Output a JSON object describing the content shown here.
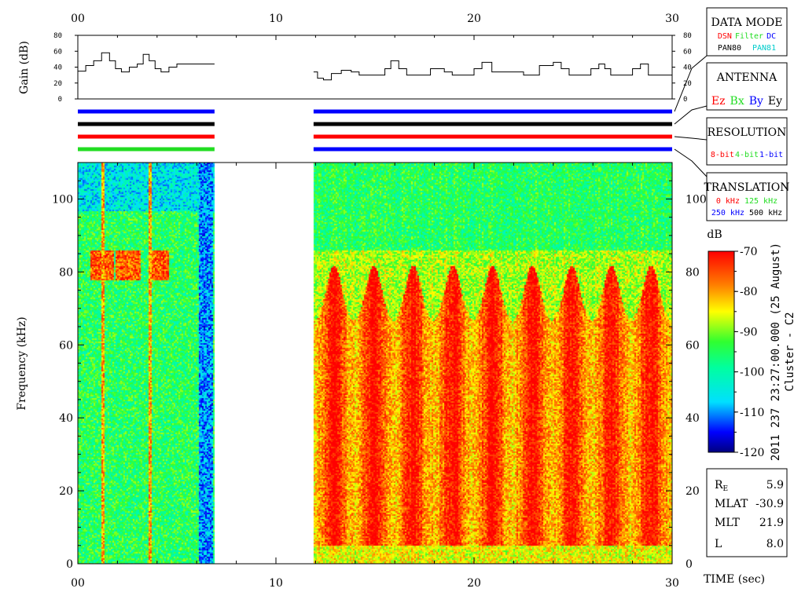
{
  "colors": {
    "red": "#ff0000",
    "green": "#22dd22",
    "blue": "#0000ff",
    "cyan": "#00cccc",
    "black": "#000000"
  },
  "time_axis": {
    "label": "TIME (sec)",
    "ticks": [
      "00",
      "10",
      "20",
      "30"
    ],
    "tick_values": [
      0,
      10,
      20,
      30
    ],
    "range": [
      0,
      30
    ],
    "minor_step": 2
  },
  "gain_panel": {
    "ylabel": "Gain (dB)",
    "ticks": [
      "0",
      "20",
      "40",
      "60",
      "80"
    ],
    "tick_values": [
      0,
      20,
      40,
      60,
      80
    ],
    "range": [
      0,
      80
    ]
  },
  "side_boxes": {
    "data_mode": {
      "title": "DATA MODE",
      "row1": [
        {
          "text": "DSN",
          "color": "red"
        },
        {
          "text": "Filter",
          "color": "green"
        },
        {
          "text": "DC",
          "color": "blue"
        }
      ],
      "row2": [
        {
          "text": "PAN80",
          "color": "black"
        },
        {
          "text": "PAN81",
          "color": "cyan"
        }
      ]
    },
    "antenna": {
      "title": "ANTENNA",
      "items": [
        {
          "text": "Ez",
          "color": "red"
        },
        {
          "text": "Bx",
          "color": "green"
        },
        {
          "text": "By",
          "color": "blue"
        },
        {
          "text": "Ey",
          "color": "black"
        }
      ]
    },
    "resolution": {
      "title": "RESOLUTION",
      "items": [
        {
          "text": "8-bit",
          "color": "red"
        },
        {
          "text": "4-bit",
          "color": "green"
        },
        {
          "text": "1-bit",
          "color": "blue"
        }
      ]
    },
    "translation": {
      "title": "TRANSLATION",
      "row1": [
        {
          "text": "0 kHz",
          "color": "red"
        },
        {
          "text": "125 kHz",
          "color": "green"
        }
      ],
      "row2": [
        {
          "text": "250 kHz",
          "color": "blue"
        },
        {
          "text": "500 kHz",
          "color": "black"
        }
      ]
    }
  },
  "mode_bars": [
    {
      "indicator": "data_mode",
      "segments": [
        {
          "start": 0,
          "end": 6.9,
          "color": "blue"
        },
        {
          "start": 11.9,
          "end": 30,
          "color": "blue"
        }
      ]
    },
    {
      "indicator": "antenna",
      "segments": [
        {
          "start": 0,
          "end": 6.9,
          "color": "black"
        },
        {
          "start": 11.9,
          "end": 30,
          "color": "black"
        }
      ]
    },
    {
      "indicator": "resolution",
      "segments": [
        {
          "start": 0,
          "end": 6.9,
          "color": "red"
        },
        {
          "start": 11.9,
          "end": 30,
          "color": "red"
        }
      ]
    },
    {
      "indicator": "translation",
      "segments": [
        {
          "start": 0,
          "end": 6.9,
          "color": "green"
        },
        {
          "start": 11.9,
          "end": 30,
          "color": "blue"
        }
      ]
    }
  ],
  "colorbar": {
    "unit": "dB",
    "ticks": [
      "-70",
      "-80",
      "-90",
      "-100",
      "-110",
      "-120"
    ],
    "tick_values": [
      -70,
      -80,
      -90,
      -100,
      -110,
      -120
    ],
    "range": [
      -120,
      -70
    ]
  },
  "caption": {
    "timestamp": "2011 237 23:27:00.000 (25 August)",
    "spacecraft": "Cluster - C2"
  },
  "orbit_info": [
    {
      "label": "RE",
      "label_main": "R",
      "label_sub": "E",
      "value": "5.9"
    },
    {
      "label": "MLAT",
      "value": "-30.9"
    },
    {
      "label": "MLT",
      "value": "21.9"
    },
    {
      "label": "L",
      "value": "8.0"
    }
  ],
  "chart_data": [
    {
      "type": "line",
      "name": "gain",
      "xlabel": "",
      "ylabel": "Gain (dB)",
      "xlim": [
        0,
        30
      ],
      "ylim": [
        0,
        80
      ],
      "series": [
        {
          "x": [
            0,
            0.4,
            0.8,
            1.2,
            1.6,
            1.9,
            2.2,
            2.6,
            3.0,
            3.3,
            3.6,
            3.9,
            4.2,
            4.6,
            5.0,
            5.5,
            6.0,
            6.9
          ],
          "y": [
            35,
            42,
            48,
            58,
            48,
            38,
            34,
            40,
            44,
            56,
            48,
            38,
            34,
            40,
            44,
            44,
            44,
            44
          ]
        },
        {
          "x": [
            11.9,
            12.1,
            12.4,
            12.8,
            13.3,
            13.8,
            14.2,
            15.0,
            15.5,
            15.8,
            16.2,
            16.6,
            17.4,
            17.8,
            18.1,
            18.5,
            18.9,
            19.6,
            20.0,
            20.4,
            20.9,
            22.0,
            22.5,
            22.9,
            23.3,
            24.0,
            24.4,
            24.8,
            25.3,
            25.9,
            26.3,
            26.6,
            26.9,
            27.5,
            28.0,
            28.4,
            28.8,
            30.0
          ],
          "y": [
            34,
            26,
            24,
            32,
            36,
            34,
            30,
            30,
            38,
            48,
            38,
            30,
            30,
            38,
            38,
            34,
            30,
            30,
            38,
            46,
            34,
            34,
            30,
            30,
            42,
            46,
            38,
            30,
            30,
            38,
            44,
            38,
            30,
            30,
            38,
            44,
            30,
            30
          ]
        }
      ]
    },
    {
      "type": "heatmap",
      "name": "spectrogram",
      "xlabel": "TIME (sec)",
      "ylabel": "Frequency (kHz)",
      "xlim": [
        0,
        30
      ],
      "ylim": [
        0,
        110
      ],
      "yticks": [
        0,
        20,
        40,
        60,
        80,
        100
      ],
      "colorbar_range_db": [
        -120,
        -70
      ],
      "data_gaps": [
        [
          6.9,
          11.9
        ]
      ],
      "segments": [
        {
          "t_start": 0,
          "t_end": 6.9,
          "typical_level_db": -95,
          "upper_band_db": -105
        },
        {
          "t_start": 11.9,
          "t_end": 30,
          "typical_level_db": -75,
          "upper_band_db": -93,
          "burst_period_sec": 2.0
        }
      ]
    }
  ]
}
